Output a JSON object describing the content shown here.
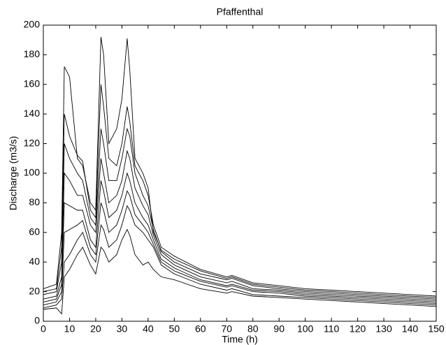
{
  "chart_data": {
    "type": "line",
    "title": "Pfaffenthal",
    "xlabel": "Time (h)",
    "ylabel": "Discharge (m3/s)",
    "x": [
      0,
      5,
      7,
      8,
      10,
      13,
      15,
      18,
      20,
      22,
      23,
      25,
      28,
      30,
      32,
      33,
      35,
      38,
      40,
      42,
      45,
      50,
      60,
      70,
      72,
      80,
      90,
      100,
      110,
      120,
      130,
      140,
      150
    ],
    "series": [
      {
        "color": "#000000",
        "values": [
          22,
          25,
          60,
          172,
          165,
          110,
          105,
          80,
          75,
          192,
          180,
          120,
          130,
          150,
          191,
          170,
          110,
          100,
          90,
          60,
          48,
          42,
          34,
          29,
          30,
          25,
          23,
          21,
          20,
          19,
          18,
          17,
          16
        ]
      },
      {
        "color": "#000000",
        "values": [
          20,
          22,
          50,
          140,
          125,
          112,
          108,
          75,
          70,
          160,
          145,
          110,
          105,
          120,
          145,
          135,
          105,
          95,
          85,
          65,
          50,
          44,
          35,
          30,
          31,
          26,
          24,
          22,
          21,
          20,
          19,
          18,
          17
        ]
      },
      {
        "color": "#000000",
        "values": [
          18,
          20,
          40,
          120,
          110,
          100,
          95,
          70,
          65,
          130,
          120,
          95,
          95,
          110,
          130,
          125,
          100,
          85,
          78,
          62,
          47,
          40,
          32,
          28,
          29,
          24,
          22,
          20,
          19,
          18,
          17,
          16,
          15
        ]
      },
      {
        "color": "#000000",
        "values": [
          15,
          17,
          30,
          100,
          95,
          85,
          85,
          65,
          60,
          110,
          100,
          80,
          85,
          95,
          115,
          110,
          90,
          78,
          72,
          58,
          45,
          38,
          30,
          26,
          27,
          22,
          21,
          19,
          18,
          17,
          16,
          15,
          14
        ]
      },
      {
        "color": "#000000",
        "values": [
          13,
          15,
          25,
          80,
          78,
          75,
          75,
          55,
          50,
          95,
          88,
          70,
          75,
          85,
          100,
          95,
          80,
          70,
          65,
          55,
          42,
          36,
          28,
          24,
          25,
          21,
          20,
          18,
          17,
          16,
          15,
          14,
          13
        ]
      },
      {
        "color": "#000000",
        "values": [
          11,
          13,
          20,
          60,
          62,
          65,
          68,
          50,
          45,
          80,
          75,
          60,
          65,
          75,
          88,
          85,
          72,
          65,
          60,
          52,
          40,
          34,
          27,
          23,
          24,
          20,
          19,
          17,
          16,
          15,
          14,
          13,
          12
        ]
      },
      {
        "color": "#000000",
        "values": [
          9,
          11,
          15,
          40,
          45,
          55,
          60,
          45,
          40,
          65,
          62,
          50,
          55,
          65,
          78,
          75,
          65,
          60,
          55,
          50,
          38,
          32,
          25,
          21,
          22,
          18,
          17,
          16,
          15,
          14,
          13,
          12,
          11
        ]
      },
      {
        "color": "#000000",
        "values": [
          8,
          9,
          5,
          30,
          35,
          45,
          50,
          38,
          32,
          50,
          48,
          40,
          45,
          55,
          62,
          58,
          45,
          38,
          40,
          35,
          30,
          28,
          22,
          19,
          20,
          17,
          16,
          15,
          14,
          13,
          12,
          11,
          10
        ]
      }
    ],
    "xlim": [
      0,
      150
    ],
    "xticks": [
      0,
      10,
      20,
      30,
      40,
      50,
      60,
      70,
      80,
      90,
      100,
      110,
      120,
      130,
      140,
      150
    ],
    "ylim": [
      0,
      200
    ],
    "yticks": [
      0,
      20,
      40,
      60,
      80,
      100,
      120,
      140,
      160,
      180,
      200
    ],
    "grid": false
  }
}
